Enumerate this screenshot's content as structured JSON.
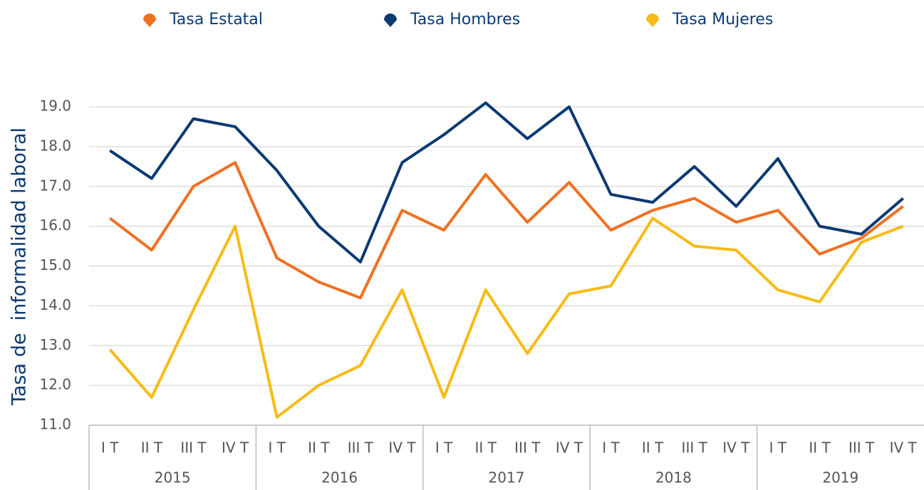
{
  "chart_data": {
    "type": "line",
    "y_label": "Tasa de  informalidad laboral",
    "categories": [
      "I T",
      "II T",
      "III T",
      "IV T",
      "I T",
      "II T",
      "III T",
      "IV T",
      "I T",
      "II T",
      "III T",
      "IV T",
      "I T",
      "II T",
      "III T",
      "IV T",
      "I T",
      "II T",
      "III T",
      "IV T"
    ],
    "years": [
      "2015",
      "2016",
      "2017",
      "2018",
      "2019"
    ],
    "series": [
      {
        "name": "Tasa Estatal",
        "color": "#f07022",
        "values": [
          16.2,
          15.4,
          17.0,
          17.6,
          15.2,
          14.6,
          14.2,
          16.4,
          15.9,
          17.3,
          16.1,
          17.1,
          15.9,
          16.4,
          16.7,
          16.1,
          16.4,
          15.3,
          15.7,
          16.5
        ]
      },
      {
        "name": "Tasa Hombres",
        "color": "#0b3a73",
        "values": [
          17.9,
          17.2,
          18.7,
          18.5,
          17.4,
          16.0,
          15.1,
          17.6,
          18.3,
          19.1,
          18.2,
          19.0,
          16.8,
          16.6,
          17.5,
          16.5,
          17.7,
          16.0,
          15.8,
          16.7
        ]
      },
      {
        "name": "Tasa Mujeres",
        "color": "#f8bb15",
        "values": [
          12.9,
          11.7,
          13.9,
          16.0,
          11.2,
          12.0,
          12.5,
          14.4,
          11.7,
          14.4,
          12.8,
          14.3,
          14.5,
          16.2,
          15.5,
          15.4,
          14.4,
          14.1,
          15.6,
          16.0
        ]
      }
    ],
    "ylim": [
      11,
      19
    ],
    "yticks": [
      {
        "value": 11,
        "label": "11.0"
      },
      {
        "value": 12,
        "label": "12.0"
      },
      {
        "value": 13,
        "label": "13.0"
      },
      {
        "value": 14,
        "label": "14.0"
      },
      {
        "value": 15,
        "label": "15.0"
      },
      {
        "value": 16,
        "label": "16.0"
      },
      {
        "value": 17,
        "label": "17.0"
      },
      {
        "value": 18,
        "label": "18.0"
      },
      {
        "value": 19,
        "label": "19.0"
      }
    ],
    "grid": true
  }
}
